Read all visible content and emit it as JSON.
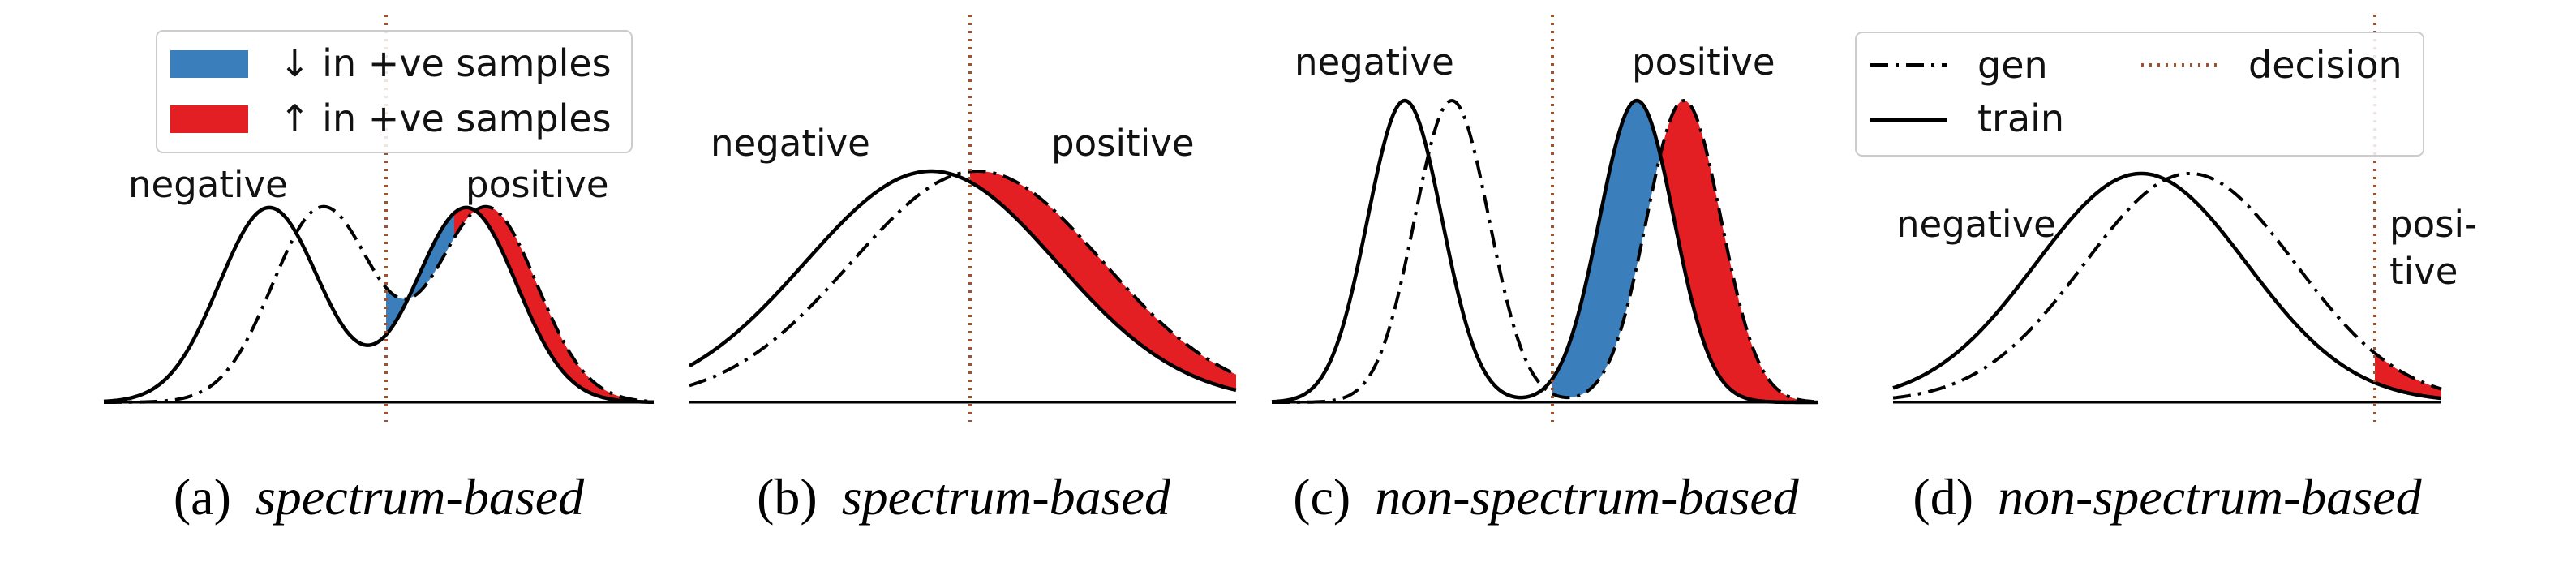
{
  "colors": {
    "decrease_fill": "#3a7fbc",
    "increase_fill": "#e31f24",
    "decision_line": "#a0522d",
    "curve": "#000000"
  },
  "legend_fill": {
    "decrease_label": "↓ in +ve samples",
    "increase_label": "↑ in +ve samples"
  },
  "legend_lines": {
    "gen_label": "gen",
    "train_label": "train",
    "decision_label": "decision"
  },
  "panels": [
    {
      "label_prefix": "(a)",
      "label_italic": "spectrum-based",
      "negative_text": "negative",
      "positive_text": "positive"
    },
    {
      "label_prefix": "(b)",
      "label_italic": "spectrum-based",
      "negative_text": "negative",
      "positive_text": "positive"
    },
    {
      "label_prefix": "(c)",
      "label_italic": "non-spectrum-based",
      "negative_text": "negative",
      "positive_text": "positive"
    },
    {
      "label_prefix": "(d)",
      "label_italic": "non-spectrum-based",
      "negative_text": "negative",
      "positive_text_line1": "posi-",
      "positive_text_line2": "tive"
    }
  ]
}
